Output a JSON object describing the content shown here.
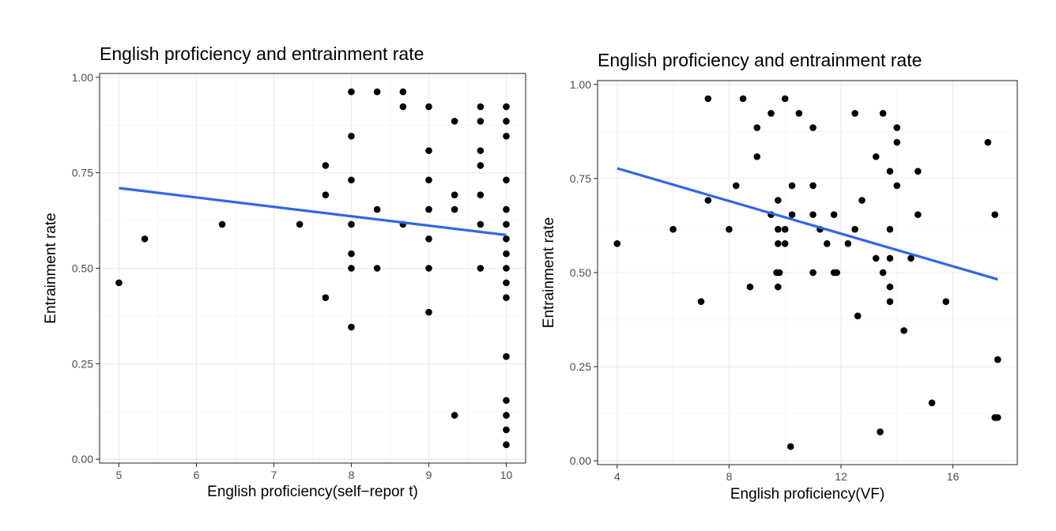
{
  "chart_data": [
    {
      "type": "scatter",
      "title": "English proficiency and entrainment rate",
      "xlabel": "English proficiency(self−repor t)",
      "ylabel": "Entrainment rate",
      "xlim": [
        4.75,
        10.25
      ],
      "ylim": [
        -0.01,
        1.01
      ],
      "xticks": [
        5,
        6,
        7,
        8,
        9,
        10
      ],
      "xtick_labels": [
        "5",
        "6",
        "7",
        "8",
        "9",
        "10"
      ],
      "yticks": [
        0,
        0.25,
        0.5,
        0.75,
        1
      ],
      "ytick_labels": [
        "0.00",
        "0.25",
        "0.50",
        "0.75",
        "1.00"
      ],
      "grid": true,
      "trend_line": {
        "x": [
          5,
          10
        ],
        "y": [
          0.71,
          0.587
        ],
        "color": "#3366e6"
      },
      "points": [
        [
          5,
          0.462
        ],
        [
          5.333,
          0.577
        ],
        [
          6.333,
          0.615
        ],
        [
          7.333,
          0.615
        ],
        [
          7.667,
          0.769
        ],
        [
          7.667,
          0.692
        ],
        [
          7.667,
          0.423
        ],
        [
          8,
          0.962
        ],
        [
          8,
          0.846
        ],
        [
          8,
          0.731
        ],
        [
          8,
          0.615
        ],
        [
          8,
          0.538
        ],
        [
          8,
          0.5
        ],
        [
          8,
          0.346
        ],
        [
          8.333,
          0.962
        ],
        [
          8.333,
          0.654
        ],
        [
          8.333,
          0.5
        ],
        [
          8.667,
          0.962
        ],
        [
          8.667,
          0.923
        ],
        [
          8.667,
          0.615
        ],
        [
          9,
          0.923
        ],
        [
          9,
          0.808
        ],
        [
          9,
          0.731
        ],
        [
          9,
          0.654
        ],
        [
          9,
          0.577
        ],
        [
          9,
          0.5
        ],
        [
          9,
          0.385
        ],
        [
          9.333,
          0.885
        ],
        [
          9.333,
          0.692
        ],
        [
          9.333,
          0.654
        ],
        [
          9.333,
          0.115
        ],
        [
          9.667,
          0.923
        ],
        [
          9.667,
          0.885
        ],
        [
          9.667,
          0.808
        ],
        [
          9.667,
          0.769
        ],
        [
          9.667,
          0.692
        ],
        [
          9.667,
          0.615
        ],
        [
          9.667,
          0.5
        ],
        [
          10,
          0.923
        ],
        [
          10,
          0.885
        ],
        [
          10,
          0.846
        ],
        [
          10,
          0.731
        ],
        [
          10,
          0.654
        ],
        [
          10,
          0.615
        ],
        [
          10,
          0.577
        ],
        [
          10,
          0.538
        ],
        [
          10,
          0.5
        ],
        [
          10,
          0.462
        ],
        [
          10,
          0.423
        ],
        [
          10,
          0.269
        ],
        [
          10,
          0.154
        ],
        [
          10,
          0.115
        ],
        [
          10,
          0.077
        ],
        [
          10,
          0.038
        ]
      ]
    },
    {
      "type": "scatter",
      "title": "English proficiency and entrainment rate",
      "xlabel": "English proficiency(VF)",
      "ylabel": "Entrainment rate",
      "xlim": [
        3.3,
        18.3
      ],
      "ylim": [
        -0.01,
        1.01
      ],
      "xticks": [
        4,
        8,
        12,
        16
      ],
      "xtick_labels": [
        "4",
        "8",
        "12",
        "16"
      ],
      "yticks": [
        0,
        0.25,
        0.5,
        0.75,
        1
      ],
      "ytick_labels": [
        "0.00",
        "0.25",
        "0.50",
        "0.75",
        "1.00"
      ],
      "grid": true,
      "trend_line": {
        "x": [
          4,
          17.6
        ],
        "y": [
          0.777,
          0.482
        ],
        "color": "#3366e6"
      },
      "points": [
        [
          4,
          0.577
        ],
        [
          6,
          0.615
        ],
        [
          7,
          0.423
        ],
        [
          7.25,
          0.962
        ],
        [
          7.25,
          0.692
        ],
        [
          8,
          0.615
        ],
        [
          8.25,
          0.731
        ],
        [
          8.5,
          0.962
        ],
        [
          8.75,
          0.462
        ],
        [
          9,
          0.885
        ],
        [
          9,
          0.808
        ],
        [
          9.5,
          0.923
        ],
        [
          9.5,
          0.654
        ],
        [
          9.7,
          0.5
        ],
        [
          9.75,
          0.692
        ],
        [
          9.75,
          0.615
        ],
        [
          9.75,
          0.577
        ],
        [
          9.75,
          0.462
        ],
        [
          9.8,
          0.5
        ],
        [
          10,
          0.962
        ],
        [
          10,
          0.615
        ],
        [
          10,
          0.577
        ],
        [
          10.2,
          0.038
        ],
        [
          10.25,
          0.731
        ],
        [
          10.25,
          0.654
        ],
        [
          10.5,
          0.923
        ],
        [
          11,
          0.885
        ],
        [
          11,
          0.731
        ],
        [
          11,
          0.654
        ],
        [
          11,
          0.5
        ],
        [
          11.25,
          0.615
        ],
        [
          11.5,
          0.577
        ],
        [
          11.75,
          0.654
        ],
        [
          11.75,
          0.5
        ],
        [
          11.85,
          0.5
        ],
        [
          12.25,
          0.577
        ],
        [
          12.5,
          0.923
        ],
        [
          12.5,
          0.615
        ],
        [
          12.6,
          0.385
        ],
        [
          12.75,
          0.692
        ],
        [
          13.25,
          0.808
        ],
        [
          13.25,
          0.538
        ],
        [
          13.4,
          0.077
        ],
        [
          13.5,
          0.923
        ],
        [
          13.5,
          0.5
        ],
        [
          13.75,
          0.769
        ],
        [
          13.75,
          0.615
        ],
        [
          13.75,
          0.538
        ],
        [
          13.75,
          0.462
        ],
        [
          13.75,
          0.423
        ],
        [
          14,
          0.885
        ],
        [
          14,
          0.846
        ],
        [
          14,
          0.731
        ],
        [
          14.25,
          0.346
        ],
        [
          14.5,
          0.538
        ],
        [
          14.75,
          0.769
        ],
        [
          14.75,
          0.654
        ],
        [
          15.25,
          0.154
        ],
        [
          15.75,
          0.423
        ],
        [
          17.25,
          0.846
        ],
        [
          17.5,
          0.654
        ],
        [
          17.5,
          0.115
        ],
        [
          17.6,
          0.269
        ],
        [
          17.6,
          0.115
        ]
      ]
    }
  ]
}
